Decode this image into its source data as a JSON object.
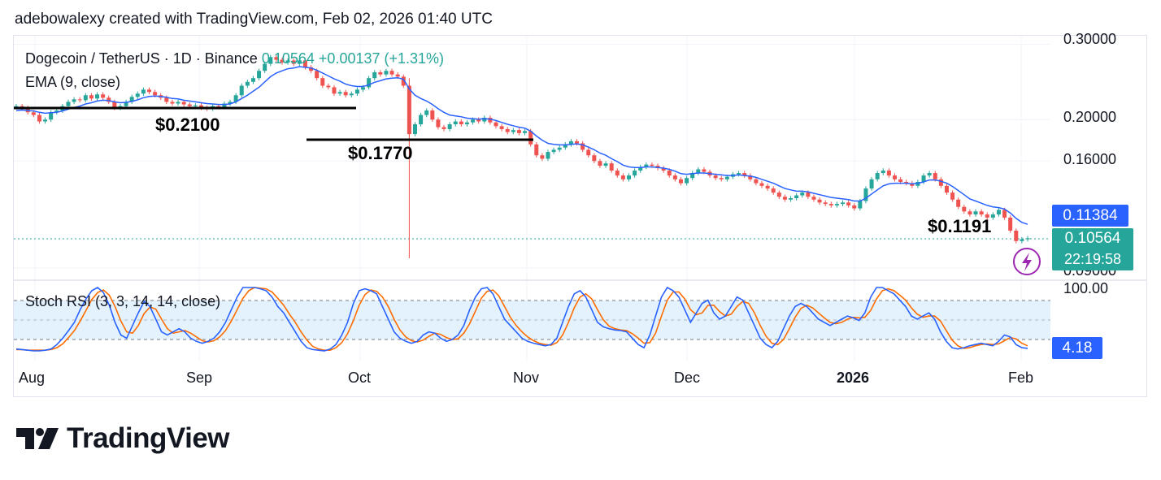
{
  "header": {
    "caption": "adebowalexy created with TradingView.com, Feb 02, 2026 01:40 UTC"
  },
  "legend": {
    "symbol": "Dogecoin / TetherUS · 1D · Binance",
    "last": "0.10564",
    "change": "+0.00137 (+1.31%)",
    "ema": "EMA (9, close)",
    "stoch": "Stoch RSI (3, 3, 14, 14, close)"
  },
  "annotations": {
    "s1": "$0.2100",
    "s2": "$0.1770",
    "s3": "$0.1191"
  },
  "price_axis": {
    "ticks": [
      "0.30000",
      "0.20000",
      "0.16000",
      "0.09000"
    ]
  },
  "stoch_axis": {
    "ticks": [
      "100.00"
    ]
  },
  "tags": {
    "ema_value": "0.11384",
    "price_value": "0.10564",
    "countdown": "22:19:58",
    "stoch_value": "4.18"
  },
  "colors": {
    "up": "#26a69a",
    "down": "#ef5350",
    "ema": "#2962ff",
    "stoch_k": "#2962ff",
    "stoch_d": "#ff6d00",
    "band": "#e3f2fd"
  },
  "icons": {
    "alert": "lightning-icon",
    "logo": "tradingview-logo-icon"
  },
  "brand": {
    "name": "TradingView"
  },
  "chart_data": [
    {
      "type": "candlestick",
      "title": "Dogecoin / TetherUS · 1D · Binance",
      "x_ticks": [
        "Aug",
        "Sep",
        "Oct",
        "Nov",
        "Dec",
        "2026",
        "Feb"
      ],
      "scale": "log",
      "ylim": [
        0.088,
        0.31
      ],
      "last_price": 0.10564,
      "ema_last": 0.11384,
      "horizontal_levels": [
        {
          "label": "$0.2100",
          "value": 0.21
        },
        {
          "label": "$0.1770",
          "value": 0.177
        }
      ],
      "point_labels": [
        {
          "label": "$0.1191",
          "value": 0.1191,
          "date": "Jan"
        }
      ],
      "close": [
        0.215,
        0.213,
        0.208,
        0.205,
        0.198,
        0.2,
        0.208,
        0.21,
        0.215,
        0.22,
        0.223,
        0.222,
        0.228,
        0.224,
        0.229,
        0.225,
        0.22,
        0.213,
        0.215,
        0.22,
        0.226,
        0.23,
        0.235,
        0.232,
        0.228,
        0.225,
        0.22,
        0.218,
        0.22,
        0.217,
        0.215,
        0.216,
        0.213,
        0.212,
        0.215,
        0.214,
        0.218,
        0.22,
        0.228,
        0.24,
        0.245,
        0.25,
        0.26,
        0.27,
        0.28,
        0.276,
        0.272,
        0.275,
        0.27,
        0.275,
        0.265,
        0.26,
        0.25,
        0.24,
        0.238,
        0.23,
        0.232,
        0.228,
        0.23,
        0.235,
        0.238,
        0.25,
        0.258,
        0.255,
        0.26,
        0.255,
        0.252,
        0.24,
        0.185,
        0.195,
        0.205,
        0.21,
        0.2,
        0.192,
        0.19,
        0.195,
        0.198,
        0.195,
        0.197,
        0.2,
        0.198,
        0.202,
        0.197,
        0.193,
        0.19,
        0.187,
        0.189,
        0.186,
        0.188,
        0.175,
        0.165,
        0.162,
        0.168,
        0.17,
        0.172,
        0.175,
        0.178,
        0.176,
        0.17,
        0.165,
        0.16,
        0.156,
        0.158,
        0.152,
        0.148,
        0.145,
        0.148,
        0.152,
        0.155,
        0.157,
        0.156,
        0.154,
        0.152,
        0.148,
        0.145,
        0.142,
        0.146,
        0.15,
        0.153,
        0.151,
        0.148,
        0.146,
        0.145,
        0.147,
        0.149,
        0.15,
        0.148,
        0.145,
        0.142,
        0.14,
        0.138,
        0.135,
        0.132,
        0.13,
        0.131,
        0.133,
        0.135,
        0.132,
        0.13,
        0.128,
        0.127,
        0.126,
        0.127,
        0.128,
        0.126,
        0.124,
        0.129,
        0.138,
        0.145,
        0.15,
        0.152,
        0.148,
        0.145,
        0.143,
        0.142,
        0.14,
        0.143,
        0.148,
        0.15,
        0.145,
        0.14,
        0.135,
        0.13,
        0.125,
        0.122,
        0.12,
        0.122,
        0.12,
        0.118,
        0.12,
        0.123,
        0.118,
        0.11,
        0.104,
        0.105,
        0.1056
      ],
      "ema": [
        0.21,
        0.2105,
        0.21,
        0.2095,
        0.208,
        0.207,
        0.2075,
        0.208,
        0.2095,
        0.2115,
        0.2135,
        0.215,
        0.2175,
        0.219,
        0.221,
        0.222,
        0.2215,
        0.22,
        0.219,
        0.2195,
        0.2205,
        0.2225,
        0.225,
        0.2265,
        0.227,
        0.2265,
        0.2255,
        0.224,
        0.2235,
        0.222,
        0.221,
        0.22,
        0.219,
        0.218,
        0.2175,
        0.217,
        0.217,
        0.2175,
        0.22,
        0.224,
        0.228,
        0.233,
        0.238,
        0.245,
        0.252,
        0.257,
        0.26,
        0.263,
        0.264,
        0.266,
        0.265,
        0.264,
        0.261,
        0.257,
        0.253,
        0.249,
        0.246,
        0.242,
        0.24,
        0.239,
        0.239,
        0.241,
        0.2445,
        0.2465,
        0.249,
        0.25,
        0.2505,
        0.2485,
        0.236,
        0.228,
        0.224,
        0.221,
        0.217,
        0.212,
        0.208,
        0.205,
        0.204,
        0.203,
        0.2015,
        0.201,
        0.2005,
        0.201,
        0.2005,
        0.199,
        0.197,
        0.195,
        0.1935,
        0.192,
        0.191,
        0.188,
        0.183,
        0.179,
        0.176,
        0.175,
        0.1745,
        0.1745,
        0.175,
        0.1755,
        0.1745,
        0.1725,
        0.17,
        0.167,
        0.165,
        0.162,
        0.1595,
        0.1565,
        0.155,
        0.1545,
        0.1545,
        0.155,
        0.155,
        0.1545,
        0.154,
        0.153,
        0.1515,
        0.1495,
        0.149,
        0.1495,
        0.15,
        0.15,
        0.1495,
        0.149,
        0.1485,
        0.148,
        0.148,
        0.1485,
        0.148,
        0.1475,
        0.1465,
        0.145,
        0.1435,
        0.142,
        0.14,
        0.138,
        0.137,
        0.136,
        0.136,
        0.1355,
        0.1345,
        0.1335,
        0.1325,
        0.1315,
        0.131,
        0.1305,
        0.13,
        0.129,
        0.129,
        0.131,
        0.134,
        0.137,
        0.14,
        0.1415,
        0.142,
        0.142,
        0.142,
        0.1415,
        0.142,
        0.143,
        0.1445,
        0.1445,
        0.1435,
        0.142,
        0.1395,
        0.1365,
        0.1335,
        0.1305,
        0.129,
        0.1275,
        0.126,
        0.125,
        0.1245,
        0.1235,
        0.121,
        0.1175,
        0.115,
        0.1138
      ]
    },
    {
      "type": "line",
      "title": "Stoch RSI (3, 3, 14, 14, close)",
      "ylim": [
        0,
        100
      ],
      "band": [
        20,
        80
      ],
      "last_value": 4.18,
      "series": [
        {
          "name": "K",
          "values": [
            3,
            2,
            1,
            0,
            0,
            1,
            3,
            10,
            20,
            32,
            45,
            65,
            82,
            95,
            100,
            92,
            72,
            45,
            25,
            20,
            40,
            60,
            78,
            70,
            50,
            30,
            25,
            30,
            35,
            30,
            20,
            15,
            12,
            15,
            20,
            30,
            45,
            65,
            85,
            100,
            100,
            100,
            98,
            95,
            85,
            70,
            60,
            45,
            30,
            15,
            5,
            2,
            1,
            0,
            3,
            10,
            25,
            45,
            75,
            95,
            98,
            95,
            90,
            70,
            50,
            30,
            20,
            15,
            12,
            15,
            25,
            30,
            28,
            20,
            15,
            18,
            25,
            40,
            65,
            85,
            98,
            100,
            90,
            70,
            50,
            40,
            30,
            20,
            15,
            12,
            10,
            8,
            10,
            20,
            45,
            70,
            90,
            95,
            85,
            65,
            45,
            38,
            35,
            33,
            32,
            30,
            20,
            10,
            5,
            25,
            55,
            85,
            100,
            95,
            85,
            65,
            45,
            60,
            75,
            80,
            60,
            50,
            55,
            70,
            85,
            80,
            60,
            40,
            20,
            10,
            5,
            15,
            35,
            55,
            70,
            75,
            70,
            60,
            50,
            45,
            40,
            45,
            50,
            55,
            52,
            48,
            60,
            85,
            100,
            100,
            95,
            90,
            80,
            70,
            55,
            50,
            55,
            60,
            50,
            30,
            15,
            5,
            3,
            5,
            8,
            10,
            12,
            10,
            8,
            15,
            25,
            22,
            10,
            5,
            4
          ]
        },
        {
          "name": "D",
          "values": [
            2,
            2,
            1,
            1,
            1,
            1,
            2,
            5,
            11,
            21,
            32,
            47,
            64,
            81,
            92,
            96,
            88,
            70,
            47,
            30,
            28,
            40,
            59,
            69,
            66,
            50,
            35,
            28,
            30,
            32,
            28,
            22,
            16,
            14,
            16,
            22,
            32,
            47,
            65,
            83,
            95,
            100,
            99,
            98,
            93,
            83,
            72,
            58,
            45,
            30,
            17,
            7,
            3,
            1,
            1,
            5,
            13,
            27,
            48,
            72,
            89,
            96,
            94,
            85,
            70,
            50,
            33,
            22,
            16,
            14,
            17,
            23,
            28,
            26,
            21,
            18,
            19,
            28,
            43,
            63,
            83,
            94,
            96,
            87,
            70,
            53,
            40,
            30,
            22,
            16,
            12,
            10,
            9,
            13,
            25,
            45,
            68,
            85,
            90,
            82,
            65,
            49,
            39,
            35,
            33,
            32,
            27,
            20,
            12,
            13,
            28,
            55,
            80,
            93,
            93,
            82,
            65,
            57,
            60,
            72,
            72,
            62,
            55,
            58,
            70,
            78,
            75,
            60,
            40,
            23,
            12,
            10,
            18,
            35,
            53,
            67,
            72,
            68,
            60,
            52,
            45,
            43,
            45,
            50,
            53,
            52,
            53,
            64,
            82,
            95,
            98,
            95,
            88,
            80,
            68,
            58,
            53,
            55,
            55,
            47,
            32,
            17,
            8,
            4,
            5,
            8,
            10,
            11,
            10,
            11,
            16,
            21,
            19,
            12,
            8
          ]
        }
      ]
    }
  ]
}
